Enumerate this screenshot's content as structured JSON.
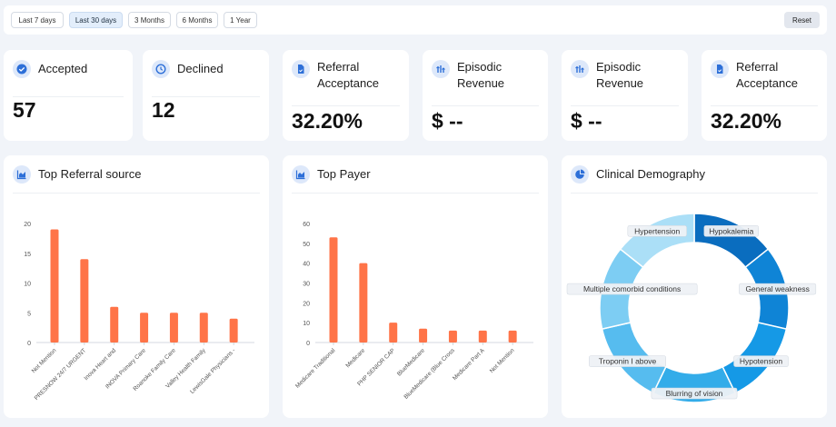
{
  "filters": {
    "buttons": [
      "Last 7 days",
      "Last 30 days",
      "3 Months",
      "6 Months",
      "1 Year"
    ],
    "active_index": 1,
    "reset_label": "Reset"
  },
  "kpis": [
    {
      "label": "Accepted",
      "value": "57",
      "icon": "check-circle-icon"
    },
    {
      "label": "Declined",
      "value": "12",
      "icon": "clock-icon"
    },
    {
      "label": "Referral Acceptance",
      "value": "32.20%",
      "icon": "document-icon"
    },
    {
      "label": "Episodic Revenue",
      "value": "$ --",
      "icon": "revenue-icon"
    },
    {
      "label": "Episodic Revenue",
      "value": "$ --",
      "icon": "revenue-icon"
    },
    {
      "label": "Referral Acceptance",
      "value": "32.20%",
      "icon": "document-icon"
    }
  ],
  "panels": {
    "referral_title": "Top Referral source",
    "payer_title": "Top Payer",
    "demography_title": "Clinical Demography"
  },
  "colors": {
    "bar": "#ff7448",
    "icon_bg": "#dde8fa",
    "icon_fg": "#2d6fd8",
    "active_filter": "#e3eefb"
  },
  "chart_data": [
    {
      "type": "bar",
      "title": "Top Referral source",
      "categories": [
        "Not Mention",
        "PRESNOW 24/7 URGENT",
        "Inova Heart and",
        "INOVA Primary Care",
        "Roanoke Family Care",
        "Valley Health Family",
        "LewisGale Physicians -"
      ],
      "values": [
        19,
        14,
        6,
        5,
        5,
        5,
        4
      ],
      "ylim": [
        0,
        20
      ],
      "yticks": [
        0,
        5,
        10,
        15,
        20
      ]
    },
    {
      "type": "bar",
      "title": "Top Payer",
      "categories": [
        "Medicare Traditional",
        "Medicare",
        "PHP SENIOR CAP",
        "BlueMedicare",
        "BlueMedicare (Blue Cross",
        "Medicare Part A",
        "Not Mention"
      ],
      "values": [
        53,
        40,
        10,
        7,
        6,
        6,
        6
      ],
      "ylim": [
        0,
        60
      ],
      "yticks": [
        0,
        10,
        20,
        30,
        40,
        50,
        60
      ]
    },
    {
      "type": "pie",
      "title": "Clinical Demography",
      "categories": [
        "Hypokalemia",
        "General weakness",
        "Hypotension",
        "Blurring of vision",
        "Troponin I above",
        "Multiple comorbid conditions",
        "Hypertension"
      ],
      "values": [
        1,
        1,
        1,
        1,
        1,
        1,
        1
      ],
      "colors": [
        "#0a6dbf",
        "#0f84d6",
        "#1599e6",
        "#33ace9",
        "#56bcef",
        "#7dcdf3",
        "#abdff7"
      ]
    }
  ]
}
